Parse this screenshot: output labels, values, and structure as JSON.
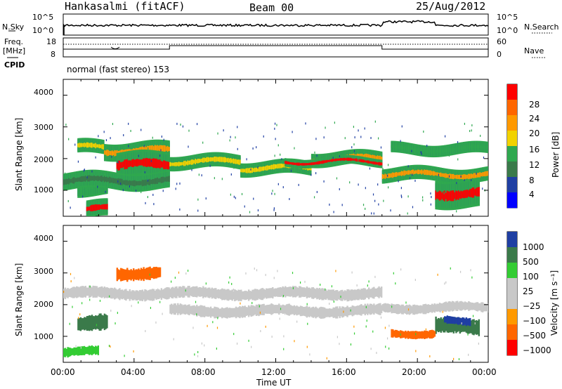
{
  "header": {
    "title": "Hankasalmi (fitACF)",
    "beam": "Beam 00",
    "date": "25/Aug/2012"
  },
  "noise_panel": {
    "left_label": "N.Sky",
    "left_ticks": [
      "10^5",
      "10^0"
    ],
    "right_label": "N.Search",
    "right_ticks": [
      "10^5",
      "10^0"
    ]
  },
  "freq_panel": {
    "left_label_line1": "Freq.",
    "left_label_line2": "[MHz]",
    "left_ticks": [
      "18",
      "8"
    ],
    "right_label": "Nave",
    "right_ticks": [
      "60",
      "0"
    ]
  },
  "cpid": {
    "label": "CPID",
    "mode_text": "normal (fast stereo) 153"
  },
  "power_panel": {
    "ylabel": "Slant Range [km]",
    "yticks": [
      "4000",
      "3000",
      "2000",
      "1000"
    ],
    "colorbar_label": "Power [dB]",
    "colorbar_ticks": [
      "28",
      "24",
      "20",
      "16",
      "12",
      "8",
      "4"
    ],
    "colors": [
      "#ff0000",
      "#ff6600",
      "#ff9900",
      "#f2d200",
      "#2fa84f",
      "#3a7a4a",
      "#1f3fa3",
      "#0000ff"
    ]
  },
  "velocity_panel": {
    "ylabel": "Slant Range [km]",
    "yticks": [
      "4000",
      "3000",
      "2000",
      "1000"
    ],
    "colorbar_label": "Velocity [m s⁻¹]",
    "colorbar_ticks": [
      "1000",
      "500",
      "100",
      "25",
      "−25",
      "−100",
      "−500",
      "−1000"
    ],
    "colors": [
      "#1f3fa3",
      "#3a7a4a",
      "#33cc33",
      "#c8c8c8",
      "#c8c8c8",
      "#ff9900",
      "#ff6600",
      "#ff0000"
    ]
  },
  "time_axis": {
    "xlabel": "Time UT",
    "ticks": [
      "00:00",
      "04:00",
      "08:00",
      "12:00",
      "16:00",
      "20:00",
      "00:00"
    ]
  },
  "chart_data": {
    "type": "heatmap",
    "title": "Hankasalmi (fitACF)",
    "x_label": "Time UT",
    "y_label": "Slant Range [km]",
    "x_range": [
      "00:00",
      "24:00"
    ],
    "y_range": [
      180,
      4500
    ],
    "panels": [
      "Power [dB]",
      "Velocity [m s-1]"
    ],
    "power_bands": [
      {
        "x0": 0.8,
        "x1": 2.3,
        "y": 2350,
        "h": 250,
        "level": 16
      },
      {
        "x0": 2.3,
        "x1": 6.0,
        "y": 2250,
        "h": 300,
        "level": 20
      },
      {
        "x0": 3.0,
        "x1": 6.0,
        "y": 1800,
        "h": 450,
        "level": 28
      },
      {
        "x0": 6.0,
        "x1": 10.0,
        "y": 1900,
        "h": 250,
        "level": 16
      },
      {
        "x0": 10.0,
        "x1": 14.0,
        "y": 1700,
        "h": 250,
        "level": 16
      },
      {
        "x0": 14.0,
        "x1": 18.0,
        "y": 2000,
        "h": 250,
        "level": 20
      },
      {
        "x0": 12.5,
        "x1": 18.0,
        "y": 1900,
        "h": 150,
        "level": 28
      },
      {
        "x0": 18.0,
        "x1": 24.0,
        "y": 1500,
        "h": 250,
        "level": 20
      },
      {
        "x0": 21.0,
        "x1": 23.5,
        "y": 900,
        "h": 500,
        "level": 28
      },
      {
        "x0": 18.5,
        "x1": 24.0,
        "y": 2300,
        "h": 200,
        "level": 12
      },
      {
        "x0": 0.8,
        "x1": 2.5,
        "y": 1200,
        "h": 400,
        "level": 12
      },
      {
        "x0": 1.3,
        "x1": 2.5,
        "y": 400,
        "h": 300,
        "level": 28
      },
      {
        "x0": 0.0,
        "x1": 6.0,
        "y": 1300,
        "h": 300,
        "level": 8
      }
    ],
    "velocity_bands": [
      {
        "x0": 0.0,
        "x1": 18.0,
        "y": 2350,
        "h": 350,
        "v": 0
      },
      {
        "x0": 6.0,
        "x1": 18.0,
        "y": 1800,
        "h": 350,
        "v": 0
      },
      {
        "x0": 18.0,
        "x1": 24.0,
        "y": 1900,
        "h": 300,
        "v": 0
      },
      {
        "x0": 21.0,
        "x1": 23.5,
        "y": 1300,
        "h": 500,
        "v": 500
      },
      {
        "x0": 21.5,
        "x1": 23.0,
        "y": 1500,
        "h": 250,
        "v": 1000
      },
      {
        "x0": 0.8,
        "x1": 2.5,
        "y": 1400,
        "h": 500,
        "v": 500
      },
      {
        "x0": 0.0,
        "x1": 2.0,
        "y": 500,
        "h": 300,
        "v": 100
      },
      {
        "x0": 3.0,
        "x1": 5.5,
        "y": 3000,
        "h": 400,
        "v": -500
      },
      {
        "x0": 18.5,
        "x1": 21.0,
        "y": 1100,
        "h": 250,
        "v": -500
      }
    ]
  }
}
